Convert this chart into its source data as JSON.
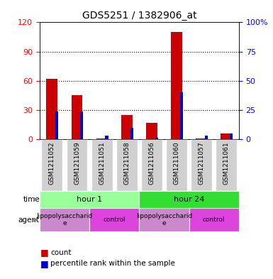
{
  "title": "GDS5251 / 1382906_at",
  "samples": [
    "GSM1211052",
    "GSM1211059",
    "GSM1211051",
    "GSM1211058",
    "GSM1211056",
    "GSM1211060",
    "GSM1211057",
    "GSM1211061"
  ],
  "counts": [
    62,
    45,
    1,
    25,
    17,
    110,
    1,
    6
  ],
  "percentiles": [
    24,
    24,
    3,
    10,
    1,
    40,
    3,
    5
  ],
  "ylim_left": [
    0,
    120
  ],
  "ylim_right": [
    0,
    100
  ],
  "yticks_left": [
    0,
    30,
    60,
    90,
    120
  ],
  "yticks_right": [
    0,
    25,
    50,
    75,
    100
  ],
  "ytick_labels_right": [
    "0",
    "25",
    "50",
    "75",
    "100%"
  ],
  "count_color": "#cc0000",
  "percentile_color": "#0000cc",
  "time_row": [
    {
      "label": "hour 1",
      "span": [
        0,
        4
      ],
      "color": "#99ff99"
    },
    {
      "label": "hour 24",
      "span": [
        4,
        8
      ],
      "color": "#33dd33"
    }
  ],
  "agent_row": [
    {
      "label": "lipopolysaccharide",
      "span": [
        0,
        2
      ],
      "color": "#cc88cc"
    },
    {
      "label": "control",
      "span": [
        2,
        4
      ],
      "color": "#dd44dd"
    },
    {
      "label": "lipopolysaccharide",
      "span": [
        4,
        6
      ],
      "color": "#cc88cc"
    },
    {
      "label": "control",
      "span": [
        6,
        8
      ],
      "color": "#dd44dd"
    }
  ],
  "sample_box_color": "#d0d0d0",
  "plot_bg_color": "#ffffff"
}
